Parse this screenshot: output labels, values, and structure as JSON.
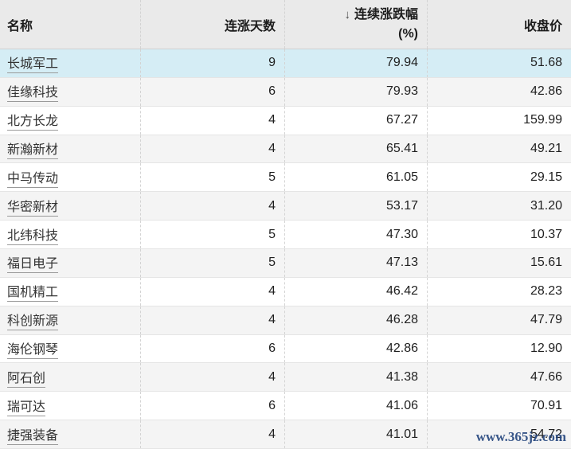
{
  "table": {
    "columns": [
      {
        "label": "名称"
      },
      {
        "label": "连涨天数"
      },
      {
        "label": "连续涨跌幅",
        "unit": "(%)",
        "sort_arrow": "↓",
        "sort": "desc"
      },
      {
        "label": "收盘价"
      }
    ],
    "highlighted_row_index": 0,
    "rows": [
      {
        "name": "长城军工",
        "days": "9",
        "change": "79.94",
        "close": "51.68"
      },
      {
        "name": "佳缘科技",
        "days": "6",
        "change": "79.93",
        "close": "42.86"
      },
      {
        "name": "北方长龙",
        "days": "4",
        "change": "67.27",
        "close": "159.99"
      },
      {
        "name": "新瀚新材",
        "days": "4",
        "change": "65.41",
        "close": "49.21"
      },
      {
        "name": "中马传动",
        "days": "5",
        "change": "61.05",
        "close": "29.15"
      },
      {
        "name": "华密新材",
        "days": "4",
        "change": "53.17",
        "close": "31.20"
      },
      {
        "name": "北纬科技",
        "days": "5",
        "change": "47.30",
        "close": "10.37"
      },
      {
        "name": "福日电子",
        "days": "5",
        "change": "47.13",
        "close": "15.61"
      },
      {
        "name": "国机精工",
        "days": "4",
        "change": "46.42",
        "close": "28.23"
      },
      {
        "name": "科创新源",
        "days": "4",
        "change": "46.28",
        "close": "47.79"
      },
      {
        "name": "海伦钢琴",
        "days": "6",
        "change": "42.86",
        "close": "12.90"
      },
      {
        "name": "阿石创",
        "days": "4",
        "change": "41.38",
        "close": "47.66"
      },
      {
        "name": "瑞可达",
        "days": "6",
        "change": "41.06",
        "close": "70.91"
      },
      {
        "name": "捷强装备",
        "days": "4",
        "change": "41.01",
        "close": "54.72"
      }
    ]
  },
  "watermark": {
    "text": "www.365jz.com"
  },
  "colors": {
    "header_bg": "#eaeaea",
    "row_highlight": "#d5edf5",
    "row_alt": "#f4f4f4",
    "row_border": "#e5e5e5",
    "column_separator": "#d3d3d3",
    "watermark": "#27487f"
  }
}
